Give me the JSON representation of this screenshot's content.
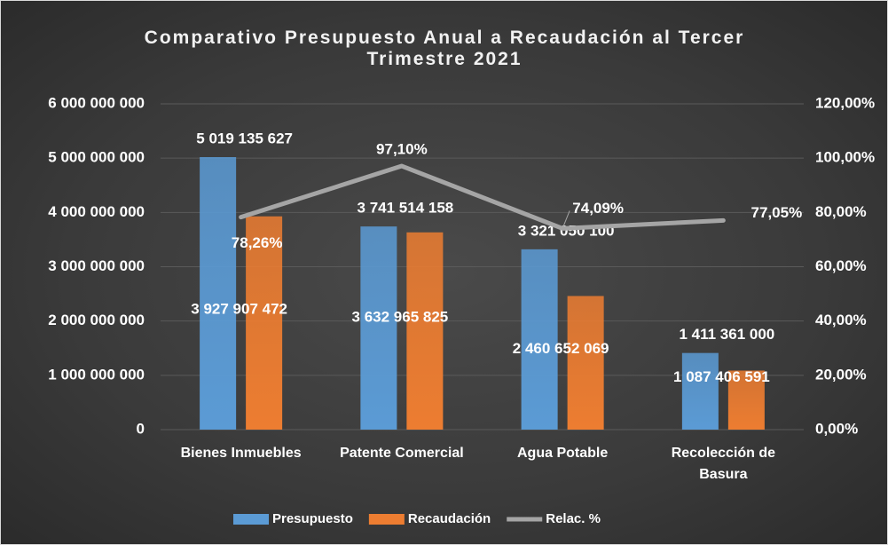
{
  "chart_data": {
    "type": "bar",
    "title": "Comparativo Presupuesto Anual a Recaudación al Tercer Trimestre 2021",
    "categories": [
      "Bienes Inmuebles",
      "Patente Comercial",
      "Agua Potable",
      "Recolección de Basura"
    ],
    "series": [
      {
        "name": "Presupuesto",
        "color": "#5b9bd5",
        "values": [
          5019135627,
          3741514158,
          3321050100,
          1411361000
        ],
        "value_labels": [
          "5 019 135 627",
          "3 741 514 158",
          "3 321 050 100",
          "1 411 361 000"
        ]
      },
      {
        "name": "Recaudación",
        "color": "#ed7d31",
        "values": [
          3927907472,
          3632965825,
          2460652069,
          1087406591
        ],
        "value_labels": [
          "3 927 907 472",
          "3 632 965 825",
          "2 460 652 069",
          "1 087 406 591"
        ]
      },
      {
        "name": "Relac. %",
        "color": "#a5a5a5",
        "type": "line",
        "axis": "y2",
        "values": [
          78.26,
          97.1,
          74.09,
          77.05
        ],
        "value_labels": [
          "78,26%",
          "97,10%",
          "74,09%",
          "77,05%"
        ]
      }
    ],
    "ylim": [
      0,
      6000000000
    ],
    "yticks": [
      0,
      {
        "value": 1000000000,
        "label": "1 000 000 000"
      },
      {
        "value": 2000000000,
        "label": "2 000 000 000"
      },
      {
        "value": 3000000000,
        "label": "3 000 000 000"
      },
      {
        "value": 4000000000,
        "label": "4 000 000 000"
      },
      {
        "value": 5000000000,
        "label": "5 000 000 000"
      },
      {
        "value": 6000000000,
        "label": "6 000 000 000"
      }
    ],
    "y2lim": [
      0,
      120
    ],
    "y2ticks": [
      {
        "value": 0,
        "label": "0,00%"
      },
      {
        "value": 20,
        "label": "20,00%"
      },
      {
        "value": 40,
        "label": "40,00%"
      },
      {
        "value": 60,
        "label": "60,00%"
      },
      {
        "value": 80,
        "label": "80,00%"
      },
      {
        "value": 100,
        "label": "100,00%"
      },
      {
        "value": 120,
        "label": "120,00%"
      }
    ],
    "grid": true
  }
}
